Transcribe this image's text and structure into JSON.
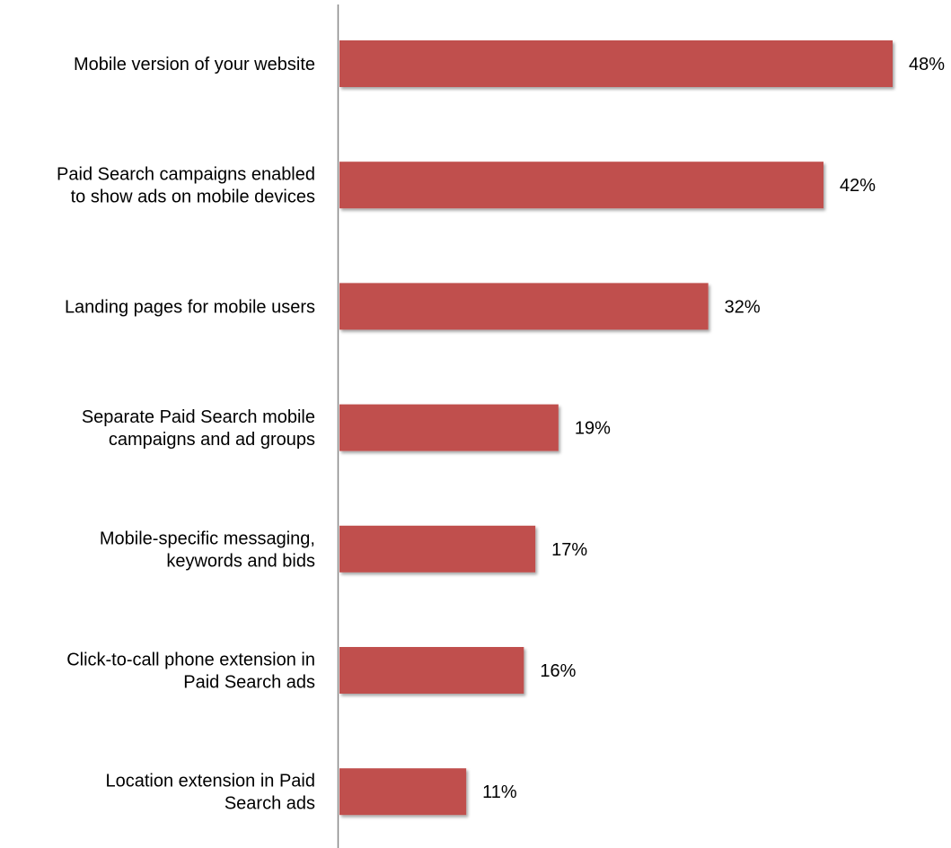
{
  "chart_data": {
    "type": "bar",
    "orientation": "horizontal",
    "categories": [
      "Mobile version of your website",
      "Paid Search campaigns enabled to show ads on mobile devices",
      "Landing pages for mobile users",
      "Separate Paid Search mobile campaigns and ad groups",
      "Mobile-specific messaging, keywords and bids",
      "Click-to-call phone extension in Paid Search ads",
      "Location extension in Paid Search ads"
    ],
    "category_lines": [
      [
        "Mobile version of your website"
      ],
      [
        "Paid Search campaigns enabled",
        "to show ads on mobile devices"
      ],
      [
        "Landing pages for mobile users"
      ],
      [
        "Separate Paid Search mobile",
        "campaigns and ad groups"
      ],
      [
        "Mobile-specific messaging,",
        "keywords and bids"
      ],
      [
        "Click-to-call phone extension in",
        "Paid Search ads"
      ],
      [
        "Location extension in Paid",
        "Search ads"
      ]
    ],
    "values": [
      48,
      42,
      32,
      19,
      17,
      16,
      11
    ],
    "value_labels": [
      "48%",
      "42%",
      "32%",
      "19%",
      "17%",
      "16%",
      "11%"
    ],
    "title": "",
    "xlabel": "",
    "ylabel": "",
    "xlim": [
      0,
      48
    ],
    "grid": false,
    "legend": "none",
    "bar_color": "#C0504D",
    "axis_color": "#888888"
  }
}
